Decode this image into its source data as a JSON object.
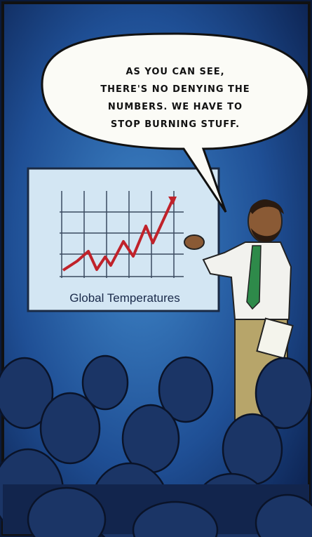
{
  "speech_bubble": {
    "lines": [
      "AS YOU CAN SEE,",
      "THERE'S NO DENYING THE",
      "NUMBERS. WE HAVE TO",
      "STOP BURNING STUFF."
    ]
  },
  "screen": {
    "caption": "Global Temperatures"
  }
}
